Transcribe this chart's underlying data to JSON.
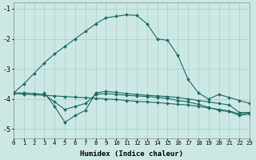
{
  "xlabel": "Humidex (Indice chaleur)",
  "bg_color": "#cce8e5",
  "grid_color": "#aacfcc",
  "line_color": "#1a6b60",
  "xlim": [
    0,
    23
  ],
  "ylim": [
    -5.3,
    -0.8
  ],
  "yticks": [
    -5,
    -4,
    -3,
    -2,
    -1
  ],
  "xticks": [
    0,
    1,
    2,
    3,
    4,
    5,
    6,
    7,
    8,
    9,
    10,
    11,
    12,
    13,
    14,
    15,
    16,
    17,
    18,
    19,
    20,
    21,
    22,
    23
  ],
  "lines": [
    {
      "x": [
        0,
        1,
        2,
        3,
        4,
        5,
        6,
        7,
        8,
        9,
        10,
        11,
        12,
        13,
        14,
        15,
        16,
        17,
        18,
        19,
        20,
        21,
        22,
        23
      ],
      "y": [
        -3.8,
        -3.5,
        -3.15,
        -2.8,
        -2.5,
        -2.25,
        -2.0,
        -1.75,
        -1.5,
        -1.3,
        -1.25,
        -1.2,
        -1.22,
        -1.5,
        -2.0,
        -2.05,
        -2.55,
        -3.35,
        -3.8,
        -4.0,
        -3.85,
        -3.95,
        -4.05,
        -4.15
      ]
    },
    {
      "x": [
        3,
        4,
        5,
        6,
        7,
        8,
        9,
        10,
        11,
        12,
        13,
        14,
        15,
        16,
        17,
        18,
        19,
        20,
        21,
        22,
        23
      ],
      "y": [
        -3.8,
        -4.25,
        -4.78,
        -4.55,
        -4.38,
        -3.8,
        -3.75,
        -3.78,
        -3.82,
        -3.85,
        -3.88,
        -3.9,
        -3.92,
        -3.95,
        -4.0,
        -4.05,
        -4.1,
        -4.15,
        -4.2,
        -4.45,
        -4.45
      ]
    },
    {
      "x": [
        0,
        1,
        2,
        3,
        4,
        5,
        6,
        7,
        8,
        9,
        10,
        11,
        12,
        13,
        14,
        15,
        16,
        17,
        18,
        19,
        20,
        21,
        22,
        23
      ],
      "y": [
        -3.82,
        -3.84,
        -3.86,
        -3.88,
        -3.9,
        -3.92,
        -3.94,
        -3.96,
        -3.98,
        -4.0,
        -4.02,
        -4.05,
        -4.08,
        -4.1,
        -4.12,
        -4.15,
        -4.18,
        -4.2,
        -4.25,
        -4.3,
        -4.35,
        -4.4,
        -4.5,
        -4.48
      ]
    },
    {
      "x": [
        0,
        1,
        2,
        3,
        4,
        5,
        6,
        7,
        8,
        9,
        10,
        11,
        12,
        13,
        14,
        15,
        16,
        17,
        18,
        19,
        20,
        21,
        22,
        23
      ],
      "y": [
        -3.8,
        -3.8,
        -3.82,
        -3.85,
        -4.1,
        -4.35,
        -4.25,
        -4.15,
        -3.85,
        -3.82,
        -3.85,
        -3.88,
        -3.9,
        -3.92,
        -3.95,
        -3.98,
        -4.05,
        -4.1,
        -4.18,
        -4.28,
        -4.38,
        -4.42,
        -4.55,
        -4.5
      ]
    }
  ]
}
